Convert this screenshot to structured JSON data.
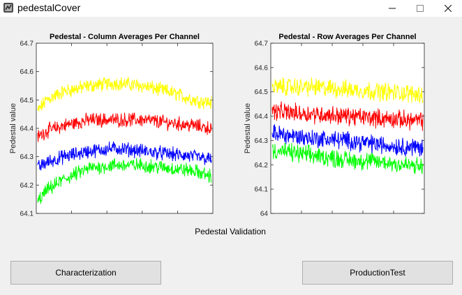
{
  "window": {
    "title": "pedestalCover",
    "icons": {
      "app": "matlab-figure-icon",
      "minimize": "minimize-icon",
      "maximize": "maximize-icon",
      "close": "close-icon"
    }
  },
  "charts": [
    {
      "title": "Pedestal - Column Averages Per Channel",
      "ylabel": "Pedestal value",
      "yticks": [
        "64.1",
        "64.2",
        "64.3",
        "64.4",
        "64.5",
        "64.6",
        "64.7"
      ],
      "ylim": [
        64.1,
        64.7
      ]
    },
    {
      "title": "Pedestal - Row Averages Per Channel",
      "ylabel": "Pedestal value",
      "yticks": [
        "64",
        "64.1",
        "64.2",
        "64.3",
        "64.4",
        "64.5",
        "64.6",
        "64.7"
      ],
      "ylim": [
        64.0,
        64.7
      ]
    }
  ],
  "chart_data": [
    {
      "type": "line",
      "title": "Pedestal - Column Averages Per Channel",
      "xlabel": "",
      "ylabel": "Pedestal value",
      "ylim": [
        64.1,
        64.7
      ],
      "grid": false,
      "noise": 0.02,
      "x": [
        0,
        0.05,
        0.15,
        0.3,
        0.45,
        0.6,
        0.75,
        0.9,
        1.0
      ],
      "series": [
        {
          "color": "#ffff00",
          "values": [
            64.46,
            64.5,
            64.53,
            64.55,
            64.56,
            64.55,
            64.53,
            64.5,
            64.49
          ]
        },
        {
          "color": "#ff0000",
          "values": [
            64.37,
            64.39,
            64.41,
            64.43,
            64.43,
            64.43,
            64.42,
            64.41,
            64.4
          ]
        },
        {
          "color": "#0000ff",
          "values": [
            64.26,
            64.28,
            64.3,
            64.32,
            64.33,
            64.32,
            64.31,
            64.3,
            64.29
          ]
        },
        {
          "color": "#00ff00",
          "values": [
            64.14,
            64.18,
            64.22,
            64.26,
            64.27,
            64.27,
            64.26,
            64.25,
            64.23
          ]
        }
      ]
    },
    {
      "type": "line",
      "title": "Pedestal - Row Averages Per Channel",
      "xlabel": "",
      "ylabel": "Pedestal value",
      "ylim": [
        64.0,
        64.7
      ],
      "grid": false,
      "noise": 0.03,
      "x": [
        0,
        0.25,
        0.5,
        0.75,
        1.0
      ],
      "series": [
        {
          "color": "#ffff00",
          "values": [
            64.52,
            64.52,
            64.51,
            64.5,
            64.49
          ]
        },
        {
          "color": "#ff0000",
          "values": [
            64.42,
            64.41,
            64.4,
            64.39,
            64.38
          ]
        },
        {
          "color": "#0000ff",
          "values": [
            64.33,
            64.31,
            64.3,
            64.28,
            64.27
          ]
        },
        {
          "color": "#00ff00",
          "values": [
            64.26,
            64.24,
            64.22,
            64.21,
            64.19
          ]
        }
      ]
    }
  ],
  "main": {
    "section_label": "Pedestal Validation",
    "buttons": {
      "characterization": "Characterization",
      "production_test": "ProductionTest"
    }
  }
}
